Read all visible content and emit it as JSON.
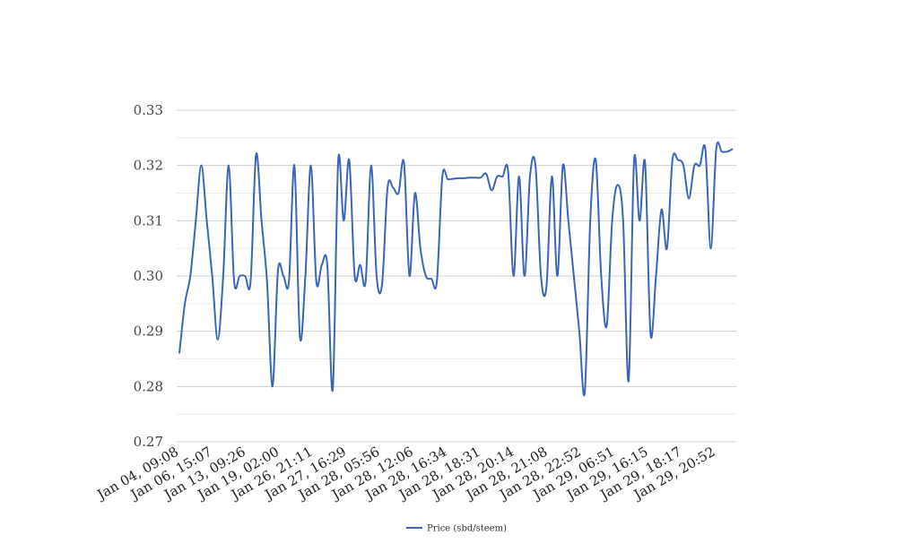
{
  "chart_data": {
    "type": "line",
    "title": "",
    "xlabel": "",
    "ylabel": "",
    "ylim": [
      0.27,
      0.33
    ],
    "yticks": [
      "0.27",
      "0.28",
      "0.29",
      "0.30",
      "0.31",
      "0.32",
      "0.33"
    ],
    "grid": true,
    "legend_position": "bottom-center",
    "x_tick_labels": [
      "Jan 04, 09:08",
      "Jan 06, 15:07",
      "Jan 13, 09:26",
      "Jan 19, 02:00",
      "Jan 26, 21:11",
      "Jan 27, 16:29",
      "Jan 28, 05:56",
      "Jan 28, 12:06",
      "Jan 28, 16:34",
      "Jan 28, 18:31",
      "Jan 28, 20:14",
      "Jan 28, 21:08",
      "Jan 28, 22:52",
      "Jan 29, 06:51",
      "Jan 29, 16:15",
      "Jan 29, 18:17",
      "Jan 29, 20:52"
    ],
    "series": [
      {
        "name": "Price (sbd/steem)",
        "color": "#3a66b8",
        "values": [
          0.286,
          0.295,
          0.3,
          0.31,
          0.32,
          0.31,
          0.3,
          0.2885,
          0.3,
          0.32,
          0.299,
          0.3,
          0.3,
          0.299,
          0.322,
          0.31,
          0.299,
          0.28,
          0.301,
          0.3,
          0.299,
          0.32,
          0.289,
          0.3,
          0.32,
          0.299,
          0.302,
          0.302,
          0.2795,
          0.321,
          0.31,
          0.321,
          0.3,
          0.302,
          0.299,
          0.32,
          0.3,
          0.2985,
          0.316,
          0.316,
          0.315,
          0.3205,
          0.3,
          0.315,
          0.305,
          0.3,
          0.2995,
          0.299,
          0.318,
          0.3175,
          0.3176,
          0.3177,
          0.3177,
          0.3178,
          0.3178,
          0.3178,
          0.3185,
          0.3155,
          0.318,
          0.318,
          0.319,
          0.3,
          0.318,
          0.3,
          0.318,
          0.32,
          0.3,
          0.298,
          0.318,
          0.3,
          0.32,
          0.31,
          0.3,
          0.29,
          0.279,
          0.31,
          0.321,
          0.3,
          0.291,
          0.31,
          0.3165,
          0.31,
          0.281,
          0.321,
          0.31,
          0.3205,
          0.2895,
          0.3,
          0.312,
          0.305,
          0.321,
          0.321,
          0.32,
          0.314,
          0.32,
          0.32,
          0.323,
          0.305,
          0.323,
          0.3225,
          0.3225,
          0.323
        ]
      }
    ]
  }
}
